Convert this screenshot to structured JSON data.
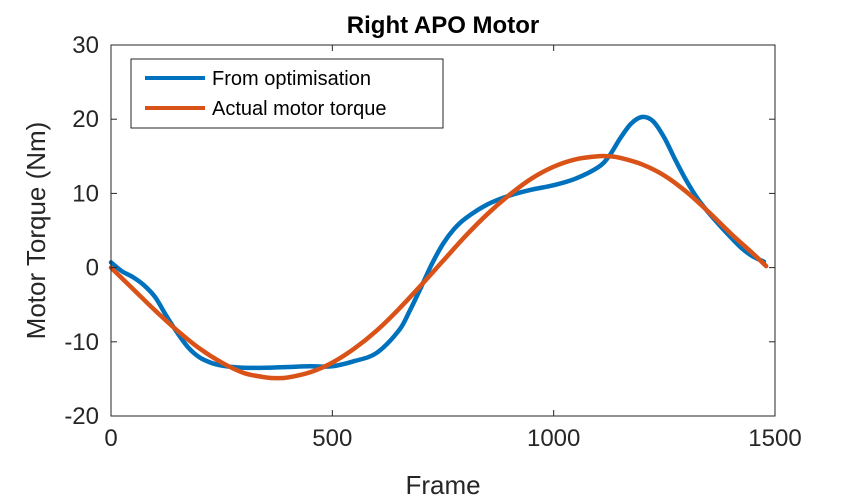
{
  "chart_data": {
    "type": "line",
    "title": "Right APO Motor",
    "xlabel": "Frame",
    "ylabel": "Motor Torque (Nm)",
    "xlim": [
      0,
      1500
    ],
    "ylim": [
      -20,
      30
    ],
    "xticks": [
      0,
      500,
      1000,
      1500
    ],
    "yticks": [
      -20,
      -10,
      0,
      10,
      20,
      30
    ],
    "grid": false,
    "legend_position": "top-left",
    "series": [
      {
        "name": "From optimisation",
        "color": "#0072BD",
        "x": [
          0,
          25,
          50,
          75,
          100,
          125,
          150,
          175,
          200,
          225,
          250,
          275,
          300,
          350,
          400,
          450,
          500,
          550,
          600,
          650,
          675,
          700,
          725,
          750,
          775,
          800,
          850,
          900,
          950,
          1000,
          1050,
          1100,
          1125,
          1150,
          1175,
          1200,
          1225,
          1250,
          1275,
          1300,
          1325,
          1350,
          1375,
          1400,
          1425,
          1450,
          1475
        ],
        "y": [
          0.7,
          -0.5,
          -1.3,
          -2.4,
          -4.0,
          -6.5,
          -8.8,
          -10.8,
          -12.1,
          -12.8,
          -13.2,
          -13.4,
          -13.5,
          -13.5,
          -13.4,
          -13.3,
          -13.3,
          -12.6,
          -11.5,
          -8.5,
          -5.8,
          -2.7,
          0.5,
          3.2,
          5.2,
          6.6,
          8.5,
          9.7,
          10.5,
          11.1,
          12.0,
          13.5,
          15.0,
          17.4,
          19.4,
          20.3,
          19.7,
          17.5,
          14.5,
          11.7,
          9.3,
          7.4,
          5.7,
          4.1,
          2.6,
          1.5,
          0.8
        ]
      },
      {
        "name": "Actual motor torque",
        "color": "#D95319",
        "x": [
          0,
          50,
          100,
          150,
          200,
          250,
          300,
          350,
          375,
          400,
          450,
          500,
          550,
          600,
          650,
          700,
          750,
          800,
          850,
          900,
          950,
          1000,
          1050,
          1100,
          1125,
          1150,
          1200,
          1250,
          1300,
          1350,
          1400,
          1450,
          1480
        ],
        "y": [
          0.0,
          -2.9,
          -5.8,
          -8.5,
          -10.9,
          -12.8,
          -14.2,
          -14.8,
          -14.9,
          -14.8,
          -14.1,
          -12.8,
          -10.9,
          -8.5,
          -5.6,
          -2.4,
          0.9,
          4.2,
          7.2,
          9.8,
          12.0,
          13.6,
          14.6,
          15.0,
          15.0,
          14.8,
          13.9,
          12.4,
          10.2,
          7.5,
          4.6,
          1.9,
          0.2
        ]
      }
    ]
  }
}
